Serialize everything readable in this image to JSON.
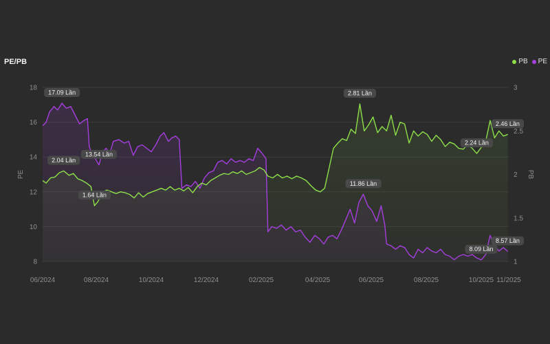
{
  "title": "PE/PB",
  "legend": [
    {
      "name": "PB",
      "color": "#8ee04a"
    },
    {
      "name": "PE",
      "color": "#a63ee0"
    }
  ],
  "colors": {
    "background": "#2b2b2b",
    "grid": "#3c3c3c",
    "pb": "#8ee04a",
    "pe": "#a63ee0",
    "label_bg": "#4a4a4a"
  },
  "chart_data": {
    "type": "line",
    "title": "PE/PB",
    "x_ticks": [
      "06/2024",
      "08/2024",
      "10/2024",
      "12/2024",
      "02/2025",
      "04/2025",
      "06/2025",
      "08/2025",
      "10/2025",
      "11/2025"
    ],
    "y_left": {
      "label": "PE",
      "ticks": [
        "8",
        "10",
        "12",
        "14",
        "16",
        "18"
      ],
      "range": [
        8,
        18
      ]
    },
    "y_right": {
      "label": "PB",
      "ticks": [
        "1",
        "1.5",
        "2",
        "2.5",
        "3"
      ],
      "range": [
        1,
        3
      ]
    },
    "grid": true,
    "legend_position": "top-right",
    "series": [
      {
        "name": "PE",
        "axis": "left",
        "points": [
          [
            "2024-06-01",
            15.8
          ],
          [
            "2024-06-05",
            16.0
          ],
          [
            "2024-06-09",
            16.6
          ],
          [
            "2024-06-14",
            16.9
          ],
          [
            "2024-06-18",
            16.7
          ],
          [
            "2024-06-23",
            17.09
          ],
          [
            "2024-06-28",
            16.8
          ],
          [
            "2024-07-03",
            16.9
          ],
          [
            "2024-07-08",
            16.4
          ],
          [
            "2024-07-13",
            15.9
          ],
          [
            "2024-07-18",
            16.1
          ],
          [
            "2024-07-22",
            16.2
          ],
          [
            "2024-07-24",
            14.6
          ],
          [
            "2024-07-27",
            14.2
          ],
          [
            "2024-07-31",
            13.9
          ],
          [
            "2024-08-04",
            13.54
          ],
          [
            "2024-08-08",
            14.3
          ],
          [
            "2024-08-12",
            14.5
          ],
          [
            "2024-08-16",
            14.2
          ],
          [
            "2024-08-20",
            14.9
          ],
          [
            "2024-08-26",
            15.0
          ],
          [
            "2024-09-01",
            14.8
          ],
          [
            "2024-09-06",
            14.9
          ],
          [
            "2024-09-11",
            14.1
          ],
          [
            "2024-09-16",
            14.6
          ],
          [
            "2024-09-21",
            14.7
          ],
          [
            "2024-09-26",
            14.5
          ],
          [
            "2024-10-01",
            14.3
          ],
          [
            "2024-10-06",
            14.7
          ],
          [
            "2024-10-11",
            15.2
          ],
          [
            "2024-10-15",
            15.4
          ],
          [
            "2024-10-20",
            14.9
          ],
          [
            "2024-10-24",
            15.1
          ],
          [
            "2024-10-28",
            15.2
          ],
          [
            "2024-11-01",
            15.0
          ],
          [
            "2024-11-04",
            12.2
          ],
          [
            "2024-11-09",
            12.4
          ],
          [
            "2024-11-14",
            12.3
          ],
          [
            "2024-11-19",
            12.6
          ],
          [
            "2024-11-24",
            12.2
          ],
          [
            "2024-11-29",
            12.8
          ],
          [
            "2024-12-04",
            13.1
          ],
          [
            "2024-12-09",
            13.2
          ],
          [
            "2024-12-14",
            13.7
          ],
          [
            "2024-12-19",
            13.8
          ],
          [
            "2024-12-24",
            13.6
          ],
          [
            "2024-12-29",
            13.9
          ],
          [
            "2025-01-03",
            13.7
          ],
          [
            "2025-01-08",
            13.8
          ],
          [
            "2025-01-13",
            13.7
          ],
          [
            "2025-01-18",
            13.9
          ],
          [
            "2025-01-23",
            13.8
          ],
          [
            "2025-01-28",
            14.5
          ],
          [
            "2025-02-02",
            14.2
          ],
          [
            "2025-02-06",
            13.9
          ],
          [
            "2025-02-08",
            9.7
          ],
          [
            "2025-02-12",
            10.0
          ],
          [
            "2025-02-17",
            9.9
          ],
          [
            "2025-02-22",
            10.1
          ],
          [
            "2025-02-27",
            9.8
          ],
          [
            "2025-03-04",
            10.0
          ],
          [
            "2025-03-09",
            9.7
          ],
          [
            "2025-03-14",
            9.8
          ],
          [
            "2025-03-19",
            9.4
          ],
          [
            "2025-03-24",
            9.1
          ],
          [
            "2025-03-29",
            9.5
          ],
          [
            "2025-04-03",
            9.3
          ],
          [
            "2025-04-08",
            9.0
          ],
          [
            "2025-04-13",
            9.4
          ],
          [
            "2025-04-18",
            9.5
          ],
          [
            "2025-04-23",
            9.3
          ],
          [
            "2025-04-28",
            9.8
          ],
          [
            "2025-05-03",
            10.4
          ],
          [
            "2025-05-08",
            11.0
          ],
          [
            "2025-05-13",
            10.2
          ],
          [
            "2025-05-18",
            11.4
          ],
          [
            "2025-05-23",
            11.86
          ],
          [
            "2025-05-28",
            11.2
          ],
          [
            "2025-06-02",
            10.9
          ],
          [
            "2025-06-07",
            10.3
          ],
          [
            "2025-06-12",
            11.2
          ],
          [
            "2025-06-16",
            10.1
          ],
          [
            "2025-06-18",
            9.0
          ],
          [
            "2025-06-23",
            8.9
          ],
          [
            "2025-06-28",
            8.7
          ],
          [
            "2025-07-03",
            8.9
          ],
          [
            "2025-07-08",
            8.8
          ],
          [
            "2025-07-13",
            8.4
          ],
          [
            "2025-07-18",
            8.2
          ],
          [
            "2025-07-23",
            8.7
          ],
          [
            "2025-07-28",
            8.5
          ],
          [
            "2025-08-02",
            8.8
          ],
          [
            "2025-08-07",
            8.6
          ],
          [
            "2025-08-12",
            8.5
          ],
          [
            "2025-08-17",
            8.7
          ],
          [
            "2025-08-22",
            8.4
          ],
          [
            "2025-08-27",
            8.3
          ],
          [
            "2025-09-01",
            8.1
          ],
          [
            "2025-09-06",
            8.3
          ],
          [
            "2025-09-11",
            8.4
          ],
          [
            "2025-09-16",
            8.3
          ],
          [
            "2025-09-21",
            8.4
          ],
          [
            "2025-09-26",
            8.2
          ],
          [
            "2025-10-01",
            8.09
          ],
          [
            "2025-10-06",
            8.4
          ],
          [
            "2025-10-11",
            9.5
          ],
          [
            "2025-10-16",
            8.9
          ],
          [
            "2025-10-21",
            8.6
          ],
          [
            "2025-10-26",
            8.8
          ],
          [
            "2025-10-31",
            8.57
          ]
        ]
      },
      {
        "name": "PB",
        "axis": "right",
        "points": [
          [
            "2024-06-01",
            1.93
          ],
          [
            "2024-06-05",
            1.9
          ],
          [
            "2024-06-10",
            1.96
          ],
          [
            "2024-06-15",
            1.97
          ],
          [
            "2024-06-20",
            2.02
          ],
          [
            "2024-06-25",
            2.04
          ],
          [
            "2024-07-01",
            1.99
          ],
          [
            "2024-07-06",
            2.01
          ],
          [
            "2024-07-11",
            1.95
          ],
          [
            "2024-07-16",
            1.93
          ],
          [
            "2024-07-21",
            1.9
          ],
          [
            "2024-07-26",
            1.86
          ],
          [
            "2024-07-30",
            1.64
          ],
          [
            "2024-08-03",
            1.69
          ],
          [
            "2024-08-08",
            1.8
          ],
          [
            "2024-08-13",
            1.82
          ],
          [
            "2024-08-18",
            1.8
          ],
          [
            "2024-08-23",
            1.78
          ],
          [
            "2024-08-28",
            1.8
          ],
          [
            "2024-09-02",
            1.79
          ],
          [
            "2024-09-07",
            1.77
          ],
          [
            "2024-09-12",
            1.73
          ],
          [
            "2024-09-17",
            1.79
          ],
          [
            "2024-09-22",
            1.74
          ],
          [
            "2024-09-27",
            1.78
          ],
          [
            "2024-10-02",
            1.8
          ],
          [
            "2024-10-07",
            1.82
          ],
          [
            "2024-10-12",
            1.84
          ],
          [
            "2024-10-17",
            1.82
          ],
          [
            "2024-10-22",
            1.86
          ],
          [
            "2024-10-27",
            1.82
          ],
          [
            "2024-11-01",
            1.84
          ],
          [
            "2024-11-06",
            1.81
          ],
          [
            "2024-11-11",
            1.85
          ],
          [
            "2024-11-16",
            1.79
          ],
          [
            "2024-11-21",
            1.86
          ],
          [
            "2024-11-26",
            1.9
          ],
          [
            "2024-12-01",
            1.88
          ],
          [
            "2024-12-06",
            1.93
          ],
          [
            "2024-12-11",
            1.96
          ],
          [
            "2024-12-16",
            1.99
          ],
          [
            "2024-12-21",
            2.01
          ],
          [
            "2024-12-26",
            2.0
          ],
          [
            "2024-12-31",
            2.03
          ],
          [
            "2025-01-05",
            2.01
          ],
          [
            "2025-01-10",
            2.04
          ],
          [
            "2025-01-15",
            2.0
          ],
          [
            "2025-01-20",
            2.02
          ],
          [
            "2025-01-25",
            2.04
          ],
          [
            "2025-01-30",
            2.08
          ],
          [
            "2025-02-04",
            2.05
          ],
          [
            "2025-02-08",
            1.98
          ],
          [
            "2025-02-13",
            1.96
          ],
          [
            "2025-02-18",
            2.0
          ],
          [
            "2025-02-23",
            1.96
          ],
          [
            "2025-02-28",
            1.98
          ],
          [
            "2025-03-05",
            1.95
          ],
          [
            "2025-03-10",
            1.98
          ],
          [
            "2025-03-15",
            1.96
          ],
          [
            "2025-03-20",
            1.93
          ],
          [
            "2025-03-25",
            1.87
          ],
          [
            "2025-03-30",
            1.82
          ],
          [
            "2025-04-04",
            1.8
          ],
          [
            "2025-04-09",
            1.84
          ],
          [
            "2025-04-14",
            2.07
          ],
          [
            "2025-04-19",
            2.3
          ],
          [
            "2025-04-24",
            2.36
          ],
          [
            "2025-04-29",
            2.41
          ],
          [
            "2025-05-04",
            2.39
          ],
          [
            "2025-05-09",
            2.52
          ],
          [
            "2025-05-14",
            2.47
          ],
          [
            "2025-05-19",
            2.81
          ],
          [
            "2025-05-24",
            2.5
          ],
          [
            "2025-05-29",
            2.57
          ],
          [
            "2025-06-03",
            2.66
          ],
          [
            "2025-06-08",
            2.48
          ],
          [
            "2025-06-13",
            2.55
          ],
          [
            "2025-06-18",
            2.5
          ],
          [
            "2025-06-23",
            2.68
          ],
          [
            "2025-06-28",
            2.45
          ],
          [
            "2025-07-03",
            2.6
          ],
          [
            "2025-07-08",
            2.58
          ],
          [
            "2025-07-13",
            2.36
          ],
          [
            "2025-07-18",
            2.5
          ],
          [
            "2025-07-23",
            2.44
          ],
          [
            "2025-07-28",
            2.49
          ],
          [
            "2025-08-02",
            2.46
          ],
          [
            "2025-08-07",
            2.38
          ],
          [
            "2025-08-12",
            2.45
          ],
          [
            "2025-08-17",
            2.4
          ],
          [
            "2025-08-22",
            2.32
          ],
          [
            "2025-08-27",
            2.37
          ],
          [
            "2025-09-01",
            2.35
          ],
          [
            "2025-09-06",
            2.3
          ],
          [
            "2025-09-11",
            2.29
          ],
          [
            "2025-09-16",
            2.34
          ],
          [
            "2025-09-21",
            2.3
          ],
          [
            "2025-09-26",
            2.24
          ],
          [
            "2025-10-01",
            2.31
          ],
          [
            "2025-10-06",
            2.38
          ],
          [
            "2025-10-11",
            2.62
          ],
          [
            "2025-10-16",
            2.42
          ],
          [
            "2025-10-21",
            2.5
          ],
          [
            "2025-10-26",
            2.44
          ],
          [
            "2025-10-31",
            2.46
          ]
        ]
      }
    ],
    "annotations": [
      {
        "series": "PE",
        "date": "2024-06-23",
        "value": 17.09,
        "text": "17.09 Lần"
      },
      {
        "series": "PE",
        "date": "2024-08-04",
        "value": 13.54,
        "text": "13.54 Lần"
      },
      {
        "series": "PE",
        "date": "2025-05-23",
        "value": 11.86,
        "text": "11.86 Lần"
      },
      {
        "series": "PE",
        "date": "2025-10-01",
        "value": 8.09,
        "text": "8.09 Lần"
      },
      {
        "series": "PE",
        "date": "2025-10-31",
        "value": 8.57,
        "text": "8.57 Lần"
      },
      {
        "series": "PB",
        "date": "2024-06-25",
        "value": 2.04,
        "text": "2.04 Lần"
      },
      {
        "series": "PB",
        "date": "2024-07-30",
        "value": 1.64,
        "text": "1.64 Lần"
      },
      {
        "series": "PB",
        "date": "2025-05-19",
        "value": 2.81,
        "text": "2.81 Lần"
      },
      {
        "series": "PB",
        "date": "2025-09-26",
        "value": 2.24,
        "text": "2.24 Lần"
      },
      {
        "series": "PB",
        "date": "2025-10-31",
        "value": 2.46,
        "text": "2.46 Lần"
      }
    ]
  }
}
